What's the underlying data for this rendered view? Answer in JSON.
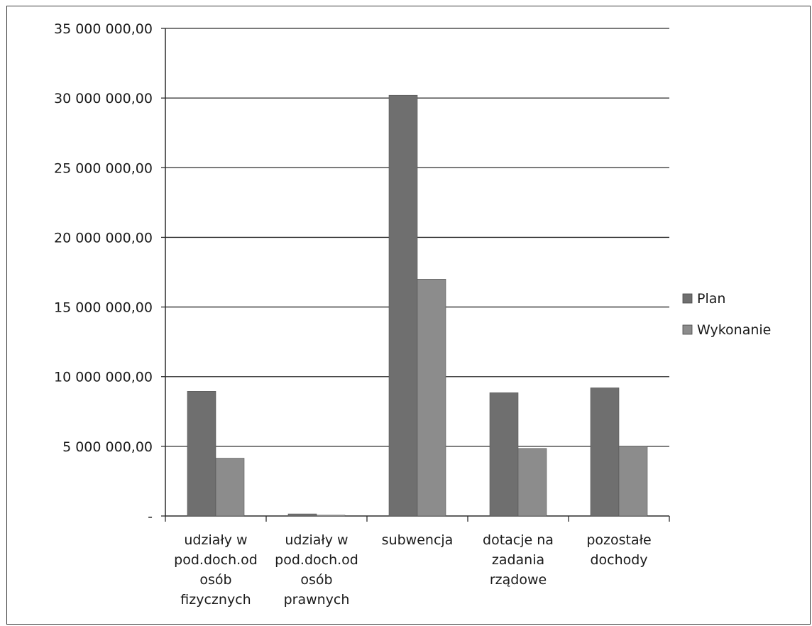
{
  "chart_data": {
    "type": "bar",
    "categories": [
      [
        "udziały w",
        "pod.doch.od",
        "osób",
        "fizycznych"
      ],
      [
        "udziały w",
        "pod.doch.od",
        "osób",
        "prawnych"
      ],
      [
        "subwencja"
      ],
      [
        "dotacje na",
        "zadania",
        "rządowe"
      ],
      [
        "pozostałe",
        "dochody"
      ]
    ],
    "series": [
      {
        "name": "Plan",
        "color": "#6f6f6f",
        "values": [
          8950000,
          150000,
          30200000,
          8850000,
          9200000
        ]
      },
      {
        "name": "Wykonanie",
        "color": "#8c8c8c",
        "values": [
          4150000,
          60000,
          17000000,
          4850000,
          5000000
        ]
      }
    ],
    "ylim": [
      0,
      35000000
    ],
    "yticks": [
      0,
      5000000,
      10000000,
      15000000,
      20000000,
      25000000,
      30000000,
      35000000
    ],
    "ytick_labels": [
      "-",
      "5 000 000,00",
      "10 000 000,00",
      "15 000 000,00",
      "20 000 000,00",
      "25 000 000,00",
      "30 000 000,00",
      "35 000 000,00"
    ],
    "grid": true,
    "legend": "right"
  }
}
